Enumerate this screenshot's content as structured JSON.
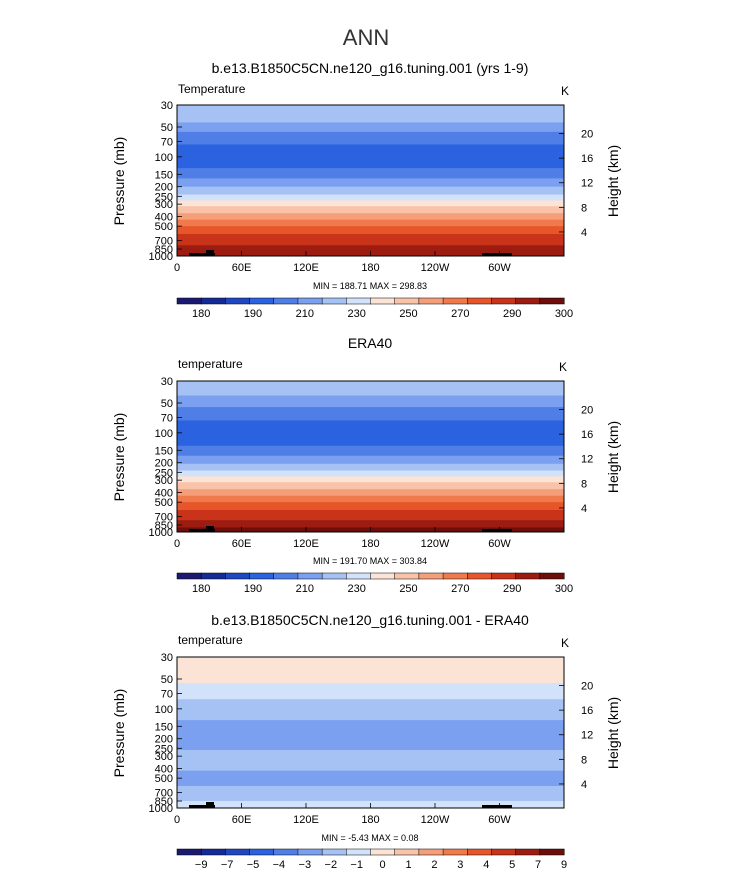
{
  "figure": {
    "suptitle": "ANN"
  },
  "axes_common": {
    "ylabel": "Pressure  (mb)",
    "ylabel_right": "Height  (km)",
    "units": "K",
    "pressure_ticks": [
      30,
      50,
      70,
      100,
      150,
      200,
      250,
      300,
      400,
      500,
      700,
      850,
      1000
    ],
    "height_ticks": [
      20,
      16,
      12,
      8,
      4
    ],
    "lon_ticks": [
      "0",
      "60E",
      "120E",
      "180",
      "120W",
      "60W"
    ],
    "colors": {
      "c01": "#1a1a73",
      "c02": "#142a96",
      "c03": "#1f47c2",
      "c04": "#2b62df",
      "c05": "#4f7fe6",
      "c06": "#7aa0ef",
      "c07": "#a6c2f5",
      "c08": "#d3e2fb",
      "c09": "#fbe3d6",
      "c10": "#f8c3a8",
      "c11": "#f59e7a",
      "c12": "#f17a4d",
      "c13": "#e6562a",
      "c14": "#c9331a",
      "c15": "#9c1c12",
      "c16": "#6e0d0a",
      "topo": "#000000"
    }
  },
  "chart_data": [
    {
      "type": "heatmap",
      "title": "b.e13.B1850C5CN.ne120_g16.tuning.001 (yrs 1-9)",
      "left_label": "Temperature",
      "units": "K",
      "x": "longitude",
      "y": "pressure (mb), log axis 30-1000",
      "min_label": "MIN =  188.71   MAX =  298.83",
      "min": 188.71,
      "max": 298.83,
      "colorbar_labels": [
        "180",
        "190",
        "210",
        "230",
        "250",
        "270",
        "290",
        "300"
      ],
      "colorbar_bins": 16,
      "bands_mb": [
        {
          "from": 30,
          "to": 45,
          "level": 6
        },
        {
          "from": 45,
          "to": 56,
          "level": 5
        },
        {
          "from": 56,
          "to": 75,
          "level": 4
        },
        {
          "from": 75,
          "to": 130,
          "level": 3
        },
        {
          "from": 130,
          "to": 165,
          "level": 4
        },
        {
          "from": 165,
          "to": 200,
          "level": 5
        },
        {
          "from": 200,
          "to": 240,
          "level": 6
        },
        {
          "from": 240,
          "to": 275,
          "level": 7
        },
        {
          "from": 275,
          "to": 315,
          "level": 8
        },
        {
          "from": 315,
          "to": 370,
          "level": 9
        },
        {
          "from": 370,
          "to": 430,
          "level": 10
        },
        {
          "from": 430,
          "to": 500,
          "level": 11
        },
        {
          "from": 500,
          "to": 600,
          "level": 12
        },
        {
          "from": 600,
          "to": 780,
          "level": 13
        },
        {
          "from": 780,
          "to": 1000,
          "level": 14
        }
      ]
    },
    {
      "type": "heatmap",
      "title": "ERA40",
      "left_label": "temperature",
      "units": "K",
      "x": "longitude",
      "y": "pressure (mb), log axis 30-1000",
      "min_label": "MIN =  191.70   MAX =  303.84",
      "min": 191.7,
      "max": 303.84,
      "colorbar_labels": [
        "180",
        "190",
        "210",
        "230",
        "250",
        "270",
        "290",
        "300"
      ],
      "colorbar_bins": 16,
      "bands_mb": [
        {
          "from": 30,
          "to": 42,
          "level": 6
        },
        {
          "from": 42,
          "to": 55,
          "level": 5
        },
        {
          "from": 55,
          "to": 75,
          "level": 4
        },
        {
          "from": 75,
          "to": 135,
          "level": 3
        },
        {
          "from": 135,
          "to": 170,
          "level": 4
        },
        {
          "from": 170,
          "to": 205,
          "level": 5
        },
        {
          "from": 205,
          "to": 240,
          "level": 6
        },
        {
          "from": 240,
          "to": 275,
          "level": 7
        },
        {
          "from": 275,
          "to": 315,
          "level": 8
        },
        {
          "from": 315,
          "to": 370,
          "level": 9
        },
        {
          "from": 370,
          "to": 430,
          "level": 10
        },
        {
          "from": 430,
          "to": 500,
          "level": 11
        },
        {
          "from": 500,
          "to": 600,
          "level": 12
        },
        {
          "from": 600,
          "to": 760,
          "level": 13
        },
        {
          "from": 760,
          "to": 900,
          "level": 14
        },
        {
          "from": 900,
          "to": 1000,
          "level": 15
        }
      ]
    },
    {
      "type": "heatmap",
      "title": "b.e13.B1850C5CN.ne120_g16.tuning.001 - ERA40",
      "left_label": "temperature",
      "units": "K",
      "x": "longitude",
      "y": "pressure (mb), log axis 30-1000",
      "min_label": "MIN =   -5.43   MAX =    0.08",
      "min": -5.43,
      "max": 0.08,
      "colorbar_labels": [
        "-9",
        "-7",
        "-5",
        "-4",
        "-3",
        "-2",
        "-1",
        "0",
        "1",
        "2",
        "3",
        "4",
        "5",
        "7",
        "9"
      ],
      "colorbar_bins": 16,
      "bands_mb": [
        {
          "from": 30,
          "to": 55,
          "level": 8
        },
        {
          "from": 55,
          "to": 80,
          "level": 7
        },
        {
          "from": 80,
          "to": 130,
          "level": 6
        },
        {
          "from": 130,
          "to": 260,
          "level": 5
        },
        {
          "from": 260,
          "to": 420,
          "level": 6
        },
        {
          "from": 420,
          "to": 600,
          "level": 5
        },
        {
          "from": 600,
          "to": 850,
          "level": 6
        },
        {
          "from": 850,
          "to": 1000,
          "level": 7
        }
      ]
    }
  ]
}
